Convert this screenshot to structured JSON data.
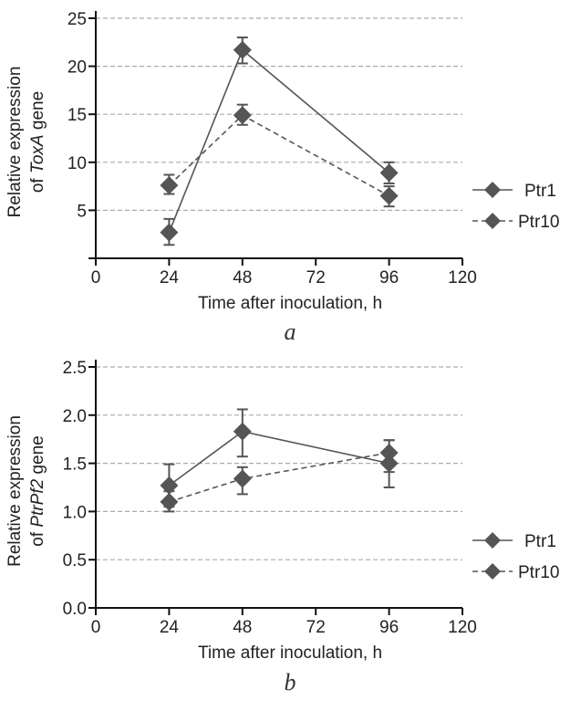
{
  "chart_data": [
    {
      "type": "line",
      "panel_label": "a",
      "title": "",
      "xlabel": "Time after inoculation, h",
      "ylabel_line1": "Relative expression",
      "ylabel_line2_prefix": "of ",
      "ylabel_gene": "ToxA",
      "ylabel_line2_suffix": " gene",
      "xlim": [
        0,
        120
      ],
      "ylim": [
        0,
        25
      ],
      "x_ticks": [
        0,
        24,
        48,
        72,
        96,
        120
      ],
      "x_tick_labels": [
        "0",
        "24",
        "48",
        "72",
        "96",
        "120"
      ],
      "y_ticks": [
        5,
        10,
        15,
        20,
        25
      ],
      "y_tick_labels": [
        "5",
        "10",
        "15",
        "20",
        "25"
      ],
      "grid": "horizontal dashed",
      "legend_position": "right",
      "x": [
        24,
        48,
        96
      ],
      "series": [
        {
          "name": "Ptr1",
          "line_style": "solid",
          "values": [
            2.7,
            21.7,
            8.9
          ],
          "err_low": [
            1.4,
            20.3,
            7.8
          ],
          "err_high": [
            4.1,
            23.0,
            10.0
          ]
        },
        {
          "name": "Ptr10",
          "line_style": "dashed",
          "values": [
            7.6,
            14.9,
            6.5
          ],
          "err_low": [
            6.7,
            13.9,
            5.4
          ],
          "err_high": [
            8.7,
            16.0,
            7.5
          ]
        }
      ]
    },
    {
      "type": "line",
      "panel_label": "b",
      "title": "",
      "xlabel": "Time after inoculation, h",
      "ylabel_line1": "Relative expression",
      "ylabel_line2_prefix": "of ",
      "ylabel_gene": "PtrPf2",
      "ylabel_line2_suffix": " gene",
      "xlim": [
        0,
        120
      ],
      "ylim": [
        0,
        2.5
      ],
      "x_ticks": [
        0,
        24,
        48,
        72,
        96,
        120
      ],
      "x_tick_labels": [
        "0",
        "24",
        "48",
        "72",
        "96",
        "120"
      ],
      "y_ticks": [
        0,
        0.5,
        1.0,
        1.5,
        2.0,
        2.5
      ],
      "y_tick_labels": [
        "0.0",
        "0.5",
        "1.0",
        "1.5",
        "2.0",
        "2.5"
      ],
      "grid": "horizontal dashed",
      "legend_position": "right",
      "x": [
        24,
        48,
        96
      ],
      "series": [
        {
          "name": "Ptr1",
          "line_style": "solid",
          "values": [
            1.27,
            1.83,
            1.5
          ],
          "err_low": [
            1.05,
            1.57,
            1.25
          ],
          "err_high": [
            1.49,
            2.06,
            1.74
          ]
        },
        {
          "name": "Ptr10",
          "line_style": "dashed",
          "values": [
            1.1,
            1.34,
            1.61
          ],
          "err_low": [
            1.0,
            1.18,
            1.41
          ],
          "err_high": [
            1.21,
            1.46,
            1.74
          ]
        }
      ]
    }
  ],
  "colors": {
    "marker": "#555555",
    "line": "#555555",
    "grid": "#aaaaaa",
    "axis": "#111111"
  }
}
